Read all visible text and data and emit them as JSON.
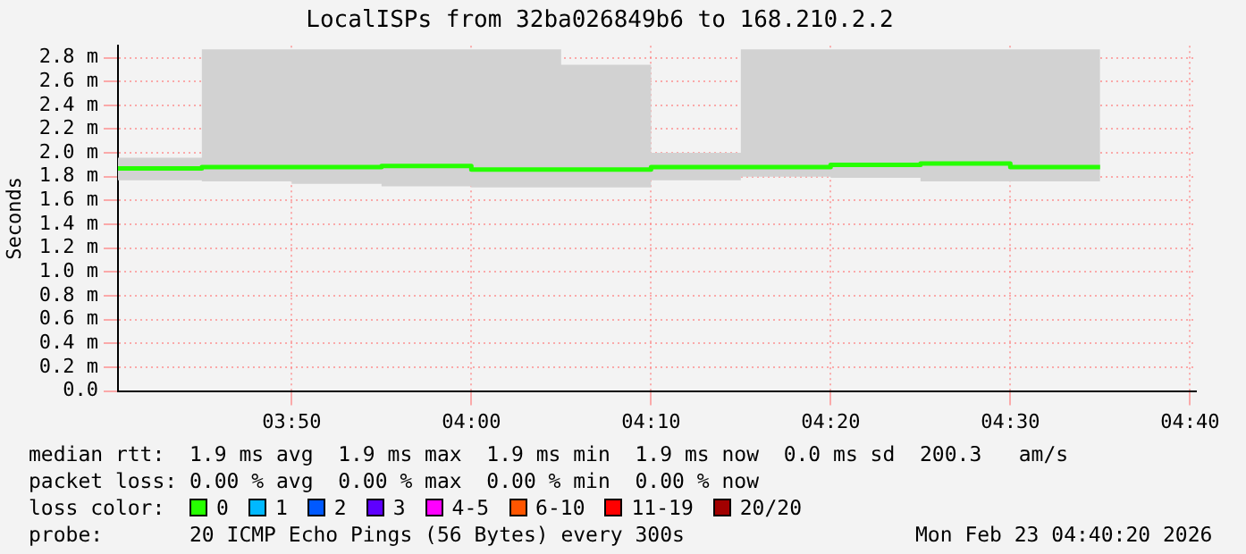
{
  "chart_data": {
    "type": "step",
    "title": "LocalISPs from 32ba026849b6 to 168.210.2.2",
    "ylabel": "Seconds",
    "x": [
      3.6722,
      3.75,
      3.8333,
      3.9167,
      4.0,
      4.0833,
      4.1667,
      4.25,
      4.3333,
      4.4167,
      4.5,
      4.5833
    ],
    "xlim": [
      3.6722,
      4.6722
    ],
    "xticks": [
      {
        "value": 3.8333,
        "label": "03:50"
      },
      {
        "value": 4.0,
        "label": "04:00"
      },
      {
        "value": 4.1667,
        "label": "04:10"
      },
      {
        "value": 4.3333,
        "label": "04:20"
      },
      {
        "value": 4.5,
        "label": "04:30"
      },
      {
        "value": 4.6667,
        "label": "04:40"
      }
    ],
    "ylim": [
      0,
      2.9
    ],
    "yticks": [
      {
        "value": 0,
        "label": "0.0"
      },
      {
        "value": 0.2,
        "label": "0.2 m"
      },
      {
        "value": 0.4,
        "label": "0.4 m"
      },
      {
        "value": 0.6,
        "label": "0.6 m"
      },
      {
        "value": 0.8,
        "label": "0.8 m"
      },
      {
        "value": 1.0,
        "label": "1.0 m"
      },
      {
        "value": 1.2,
        "label": "1.2 m"
      },
      {
        "value": 1.4,
        "label": "1.4 m"
      },
      {
        "value": 1.6,
        "label": "1.6 m"
      },
      {
        "value": 1.8,
        "label": "1.8 m"
      },
      {
        "value": 2.0,
        "label": "2.0 m"
      },
      {
        "value": 2.2,
        "label": "2.2 m"
      },
      {
        "value": 2.4,
        "label": "2.4 m"
      },
      {
        "value": 2.6,
        "label": "2.6 m"
      },
      {
        "value": 2.8,
        "label": "2.8 m"
      }
    ],
    "grid": true,
    "legend": "bottom",
    "legend_title": "loss color:",
    "series": [
      {
        "name": "0",
        "color": "#26ff00",
        "values": [
          1.87,
          1.88,
          1.88,
          1.89,
          1.86,
          1.86,
          1.88,
          1.88,
          1.9,
          1.91,
          1.88,
          1.88
        ],
        "lower": [
          1.77,
          1.76,
          1.74,
          1.72,
          1.71,
          1.71,
          1.77,
          1.8,
          1.79,
          1.76,
          1.76,
          1.76
        ],
        "upper": [
          1.96,
          2.87,
          2.87,
          2.87,
          2.87,
          2.74,
          2.0,
          2.87,
          2.87,
          2.87,
          2.87,
          2.87
        ]
      },
      {
        "name": "1",
        "color": "#00b8ff",
        "values": [
          null,
          null,
          null,
          null,
          null,
          null,
          null,
          null,
          null,
          null,
          null,
          null
        ]
      },
      {
        "name": "2",
        "color": "#0059ff",
        "values": [
          null,
          null,
          null,
          null,
          null,
          null,
          null,
          null,
          null,
          null,
          null,
          null
        ]
      },
      {
        "name": "3",
        "color": "#5e00ff",
        "values": [
          null,
          null,
          null,
          null,
          null,
          null,
          null,
          null,
          null,
          null,
          null,
          null
        ]
      },
      {
        "name": "4-5",
        "color": "#ff00ff",
        "values": [
          null,
          null,
          null,
          null,
          null,
          null,
          null,
          null,
          null,
          null,
          null,
          null
        ]
      },
      {
        "name": "6-10",
        "color": "#ff5500",
        "values": [
          null,
          null,
          null,
          null,
          null,
          null,
          null,
          null,
          null,
          null,
          null,
          null
        ]
      },
      {
        "name": "11-19",
        "color": "#ff0000",
        "values": [
          null,
          null,
          null,
          null,
          null,
          null,
          null,
          null,
          null,
          null,
          null,
          null
        ]
      },
      {
        "name": "20/20",
        "color": "#a10000",
        "values": [
          null,
          null,
          null,
          null,
          null,
          null,
          null,
          null,
          null,
          null,
          null,
          null
        ]
      }
    ],
    "annotations": [
      "median rtt:  1.9 ms avg  1.9 ms max  1.9 ms min  1.9 ms now  0.0 ms sd  200.3   am/s",
      "packet loss: 0.00 % avg  0.00 % max  0.00 % min  0.00 % now",
      "probe:       20 ICMP Echo Pings (56 Bytes) every 300s",
      "Mon Feb 23 04:40:20 2026"
    ]
  }
}
